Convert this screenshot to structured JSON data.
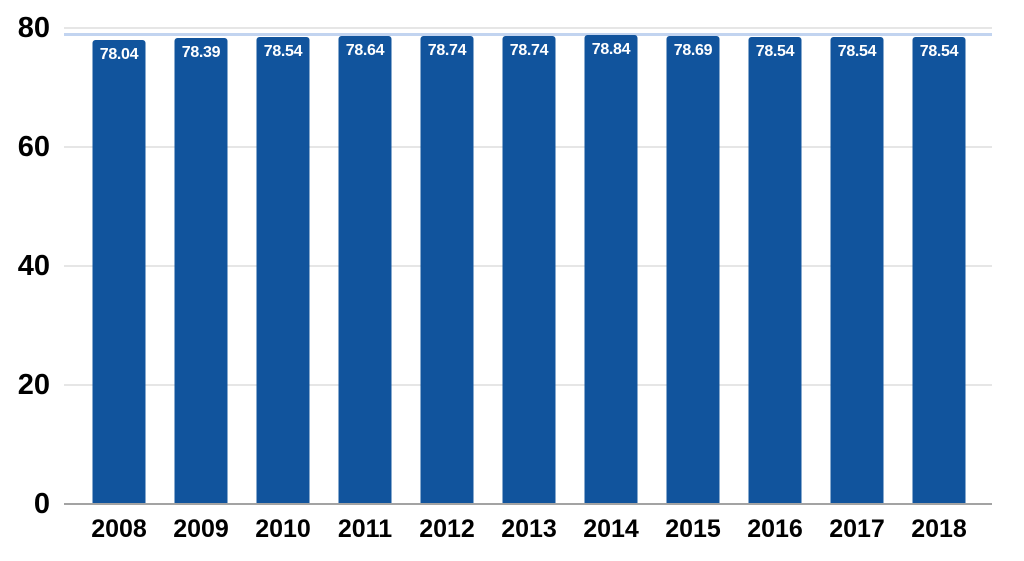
{
  "chart_data": {
    "type": "bar",
    "title": "",
    "xlabel": "",
    "ylabel": "",
    "categories": [
      "2008",
      "2009",
      "2010",
      "2011",
      "2012",
      "2013",
      "2014",
      "2015",
      "2016",
      "2017",
      "2018"
    ],
    "values": [
      78.04,
      78.39,
      78.54,
      78.64,
      78.74,
      78.74,
      78.84,
      78.69,
      78.54,
      78.54,
      78.54
    ],
    "value_labels": [
      "78.04",
      "78.39",
      "78.54",
      "78.64",
      "78.74",
      "78.74",
      "78.84",
      "78.69",
      "78.54",
      "78.54",
      "78.54"
    ],
    "ylim": [
      0,
      80
    ],
    "yticks": [
      0,
      20,
      40,
      60,
      80
    ],
    "grid": true,
    "legend": false,
    "reference_line": {
      "value": 78.8,
      "color": "#c2d4f0"
    },
    "colors": {
      "bar": "#11549d",
      "bar_label": "#ffffff",
      "axis_text": "#000000",
      "gridline": "#e6e6e6",
      "baseline": "#a3a3a3",
      "background": "#ffffff"
    }
  }
}
